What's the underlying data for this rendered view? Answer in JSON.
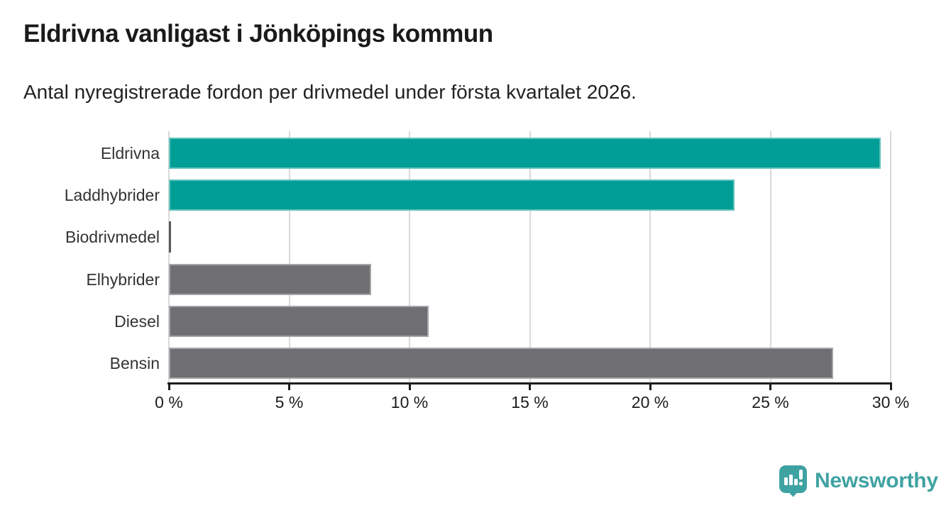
{
  "title": "Eldrivna vanligast i Jönköpings kommun",
  "subtitle": "Antal nyregistrerade fordon per drivmedel under första kvartalet 2026.",
  "chart_data": {
    "type": "bar",
    "orientation": "horizontal",
    "title": "Eldrivna vanligast i Jönköpings kommun",
    "subtitle": "Antal nyregistrerade fordon per drivmedel under första kvartalet 2026.",
    "categories": [
      "Eldrivna",
      "Laddhybrider",
      "Biodrivmedel",
      "Elhybrider",
      "Diesel",
      "Bensin"
    ],
    "values": [
      29.6,
      23.5,
      0.1,
      8.4,
      10.8,
      27.6
    ],
    "unit": "%",
    "xlim": [
      0,
      30
    ],
    "x_ticks": [
      0,
      5,
      10,
      15,
      20,
      25,
      30
    ],
    "x_tick_labels": [
      "0 %",
      "5 %",
      "10 %",
      "15 %",
      "20 %",
      "25 %",
      "30 %"
    ],
    "bar_colors": [
      "#009e96",
      "#009e96",
      "#5a5a5f",
      "#6e6e73",
      "#6e6e73",
      "#6e6e73"
    ],
    "highlight_color": "#009e96",
    "default_color": "#6e6e73",
    "gridline_color": "#d9d9d9",
    "axis_color": "#1d1d1d",
    "grid": true,
    "legend": "none"
  },
  "branding": {
    "logo_label": "Newsworthy",
    "logo_color": "#3fa2a2",
    "logo_icon": "speech-bubble-bar-chart-icon"
  }
}
